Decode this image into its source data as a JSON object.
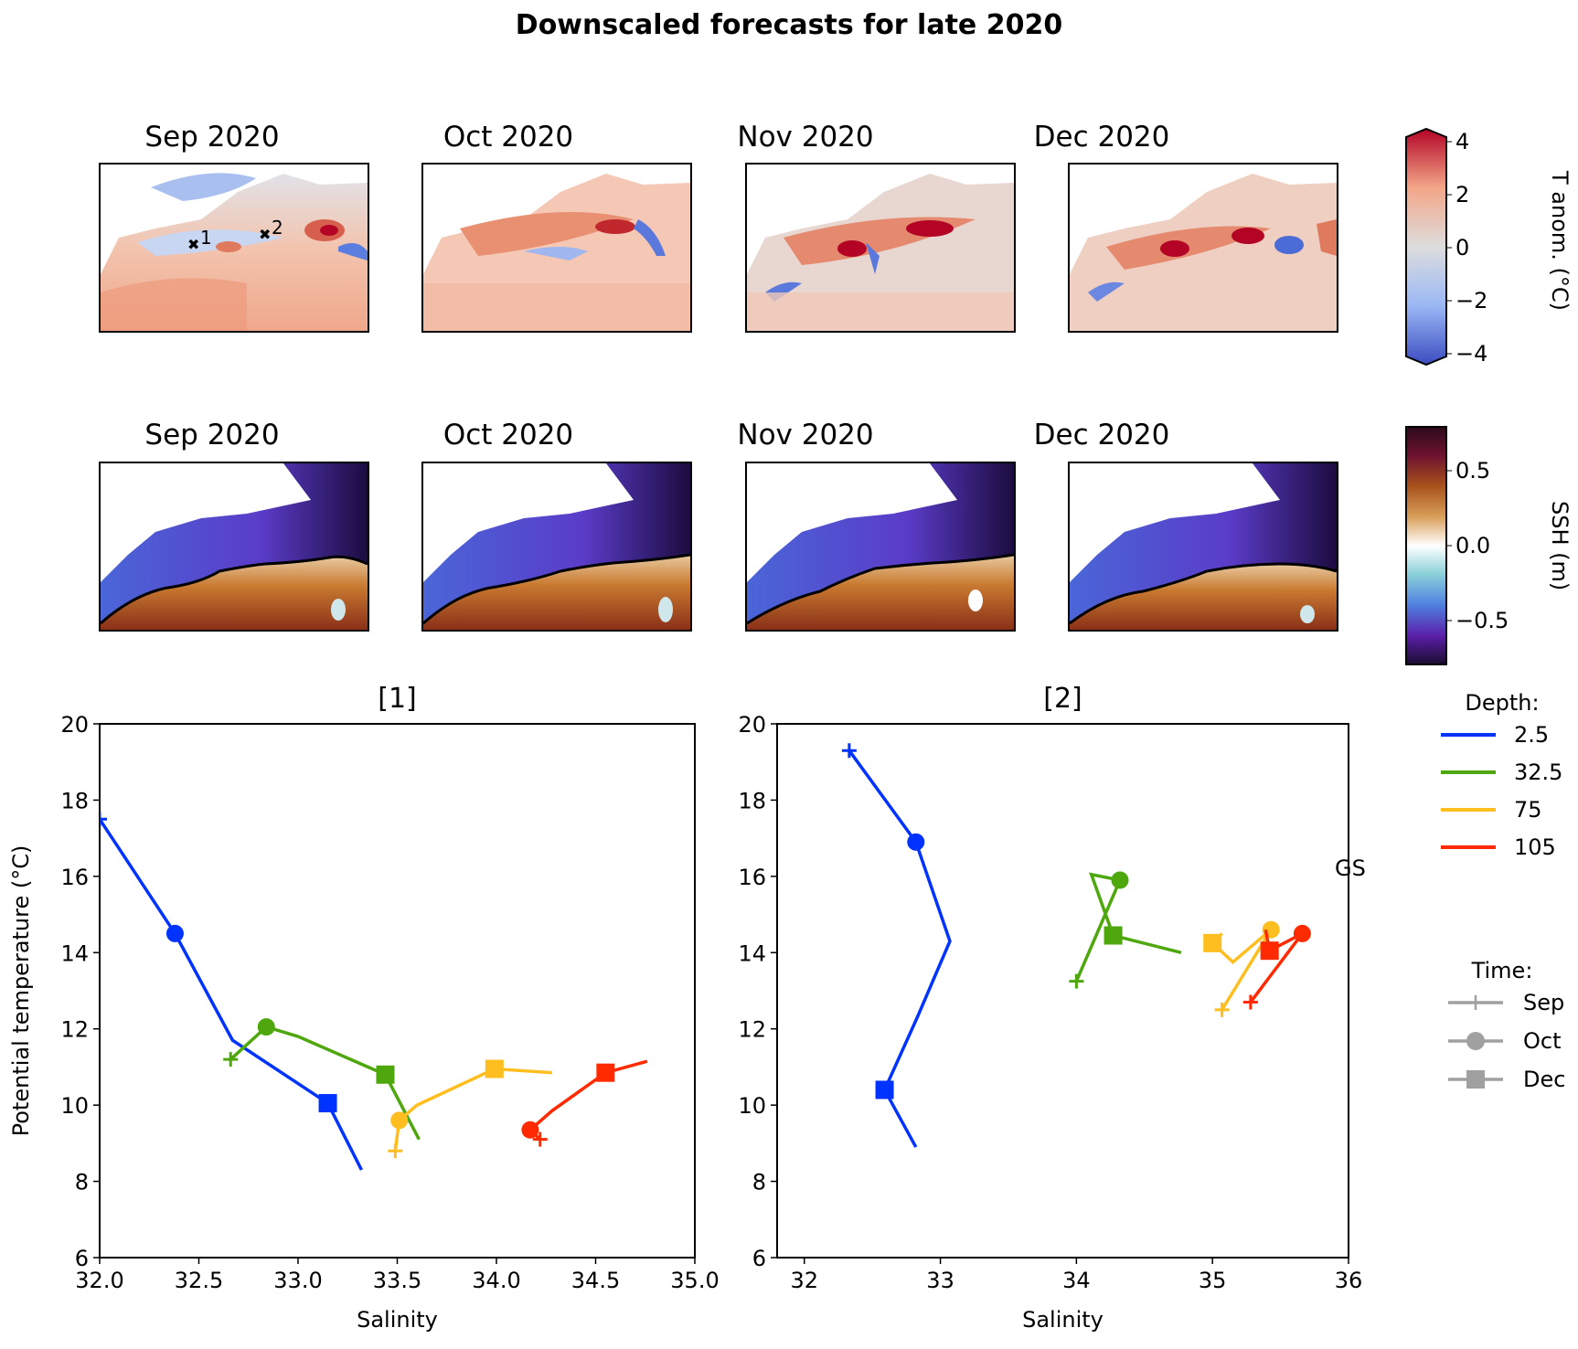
{
  "figure": {
    "title": "Downscaled forecasts for late 2020"
  },
  "maps": {
    "row1": {
      "variable": "T anom.",
      "panels": [
        "Sep 2020",
        "Oct 2020",
        "Nov 2020",
        "Dec 2020"
      ],
      "station_labels": [
        "1",
        "2"
      ]
    },
    "row2": {
      "variable": "SSH",
      "panels": [
        "Sep 2020",
        "Oct 2020",
        "Nov 2020",
        "Dec 2020"
      ]
    }
  },
  "colorbars": [
    {
      "label": "T anom. (°C)",
      "ticks": [
        "4",
        "2",
        "0",
        "−2",
        "−4"
      ],
      "range": [
        -4,
        4
      ],
      "extend": "both",
      "cmap": [
        "#3b4cc0",
        "#dddddd",
        "#b40426"
      ]
    },
    {
      "label": "SSH (m)",
      "ticks": [
        "0.5",
        "0.0",
        "−0.5"
      ],
      "range": [
        -0.8,
        0.8
      ],
      "cmap": [
        "#1a0c2e",
        "#5a1fa8",
        "#4f7fe0",
        "#8ad0d8",
        "#ffffff",
        "#d9a05a",
        "#a8521c",
        "#6e1230",
        "#2b0a1a"
      ]
    }
  ],
  "legend": {
    "depth_title": "Depth:",
    "depth": [
      {
        "label": "2.5",
        "color": "#0033ff"
      },
      {
        "label": "32.5",
        "color": "#4ea70c"
      },
      {
        "label": "75",
        "color": "#ffbe1f"
      },
      {
        "label": "105",
        "color": "#ff2a00"
      }
    ],
    "time_title": "Time:",
    "time": [
      {
        "label": "Sep",
        "marker": "plus"
      },
      {
        "label": "Oct",
        "marker": "circle"
      },
      {
        "label": "Dec",
        "marker": "square"
      }
    ],
    "gs_label": "GS"
  },
  "chart_data": [
    {
      "type": "line",
      "title": "[1]",
      "xlabel": "Salinity",
      "ylabel": "Potential temperature (°C)",
      "xlim": [
        32.0,
        35.0
      ],
      "ylim": [
        6,
        20
      ],
      "xticks": [
        "32.0",
        "32.5",
        "33.0",
        "33.5",
        "34.0",
        "34.5",
        "35.0"
      ],
      "xtick_values": [
        32.0,
        32.5,
        33.0,
        33.5,
        34.0,
        34.5,
        35.0
      ],
      "yticks": [
        6,
        8,
        10,
        12,
        14,
        16,
        18,
        20
      ],
      "series": [
        {
          "name": "2.5",
          "x": [
            32.0,
            32.38,
            32.67,
            33.15,
            33.32
          ],
          "y": [
            17.5,
            14.5,
            11.7,
            10.05,
            8.3
          ],
          "markers": {
            "Sep": 0,
            "Oct": 1,
            "Dec": 3
          }
        },
        {
          "name": "32.5",
          "x": [
            32.66,
            32.84,
            33.0,
            33.44,
            33.61
          ],
          "y": [
            11.2,
            12.05,
            11.8,
            10.8,
            9.1
          ],
          "markers": {
            "Sep": 0,
            "Oct": 1,
            "Dec": 3
          }
        },
        {
          "name": "75",
          "x": [
            33.49,
            33.51,
            33.6,
            33.99,
            34.28
          ],
          "y": [
            8.8,
            9.6,
            10.0,
            10.95,
            10.85
          ],
          "markers": {
            "Sep": 0,
            "Oct": 1,
            "Dec": 3
          }
        },
        {
          "name": "105",
          "x": [
            34.22,
            34.17,
            34.28,
            34.55,
            34.76
          ],
          "y": [
            9.1,
            9.35,
            9.85,
            10.85,
            11.15
          ],
          "markers": {
            "Sep": 0,
            "Oct": 1,
            "Dec": 3
          }
        }
      ]
    },
    {
      "type": "line",
      "title": "[2]",
      "xlabel": "Salinity",
      "ylabel": "",
      "xlim": [
        31.8,
        36.0
      ],
      "ylim": [
        6,
        20
      ],
      "xticks": [
        "32",
        "33",
        "34",
        "35",
        "36"
      ],
      "xtick_values": [
        32,
        33,
        34,
        35,
        36
      ],
      "yticks": [
        6,
        8,
        10,
        12,
        14,
        16,
        18,
        20
      ],
      "series": [
        {
          "name": "2.5",
          "x": [
            32.33,
            32.82,
            33.07,
            32.83,
            32.59,
            32.82
          ],
          "y": [
            19.3,
            16.9,
            14.3,
            12.3,
            10.4,
            8.9
          ],
          "markers": {
            "Sep": 0,
            "Oct": 1,
            "Dec": 4
          }
        },
        {
          "name": "32.5",
          "x": [
            34.0,
            34.32,
            34.11,
            34.27,
            34.77
          ],
          "y": [
            13.25,
            15.9,
            16.05,
            14.45,
            14.0
          ],
          "markers": {
            "Sep": 0,
            "Oct": 1,
            "Dec": 3
          }
        },
        {
          "name": "75",
          "x": [
            35.07,
            35.43,
            35.15,
            35.0,
            35.07
          ],
          "y": [
            12.5,
            14.6,
            13.75,
            14.25,
            14.5
          ],
          "markers": {
            "Sep": 0,
            "Oct": 1,
            "Dec": 3
          }
        },
        {
          "name": "105",
          "x": [
            35.28,
            35.66,
            35.42,
            35.39
          ],
          "y": [
            12.7,
            14.5,
            14.05,
            14.6
          ],
          "markers": {
            "Sep": 0,
            "Oct": 1,
            "Dec": 2
          }
        }
      ]
    }
  ]
}
